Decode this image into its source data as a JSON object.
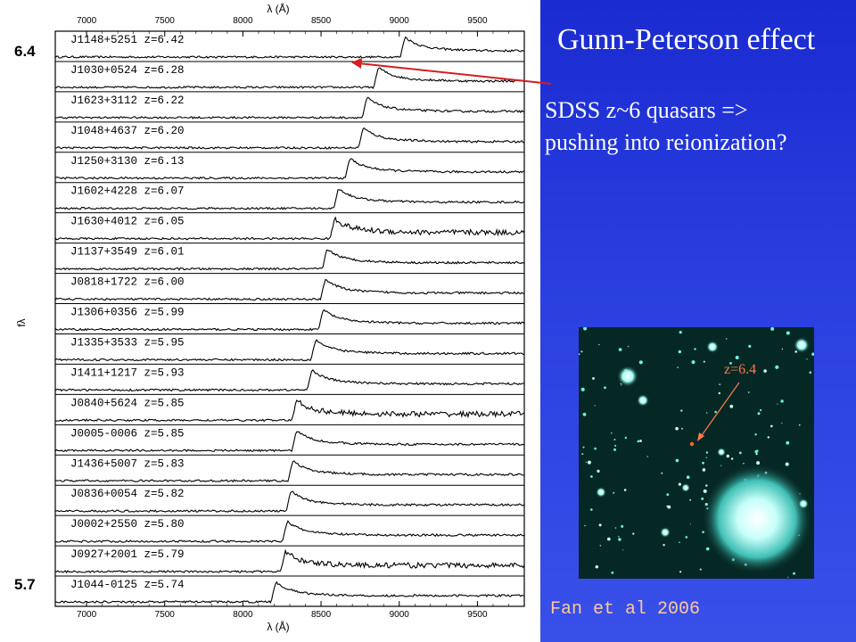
{
  "slide": {
    "title": "Gunn-Peterson effect",
    "text_line1": "SDSS z~6 quasars =>",
    "text_line2": "pushing into reionization?",
    "credit": "Fan et al 2006",
    "image_label": "z=6.4",
    "marker_top": "6.4",
    "marker_bottom": "5.7"
  },
  "colors": {
    "panel": "#2b3fe0",
    "title_text": "#ffffff",
    "credit_text": "#ffc8a0",
    "arrow": "#d02020",
    "image_label": "#ff7a4a"
  },
  "chart_data": {
    "type": "line",
    "xlabel": "λ (Å)",
    "ylabel": "fλ",
    "xlim": [
      6800,
      9800
    ],
    "xticks": [
      7000,
      7500,
      8000,
      8500,
      9000,
      9500
    ],
    "series": [
      {
        "name": "J1148+5251 z=6.42",
        "z": 6.42
      },
      {
        "name": "J1030+0524 z=6.28",
        "z": 6.28
      },
      {
        "name": "J1623+3112 z=6.22",
        "z": 6.22
      },
      {
        "name": "J1048+4637 z=6.20",
        "z": 6.2
      },
      {
        "name": "J1250+3130 z=6.13",
        "z": 6.13
      },
      {
        "name": "J1602+4228 z=6.07",
        "z": 6.07
      },
      {
        "name": "J1630+4012 z=6.05",
        "z": 6.05
      },
      {
        "name": "J1137+3549 z=6.01",
        "z": 6.01
      },
      {
        "name": "J0818+1722 z=6.00",
        "z": 6.0
      },
      {
        "name": "J1306+0356 z=5.99",
        "z": 5.99
      },
      {
        "name": "J1335+3533 z=5.95",
        "z": 5.95
      },
      {
        "name": "J1411+1217 z=5.93",
        "z": 5.93
      },
      {
        "name": "J0840+5624 z=5.85",
        "z": 5.85
      },
      {
        "name": "J0005-0006 z=5.85",
        "z": 5.85
      },
      {
        "name": "J1436+5007 z=5.83",
        "z": 5.83
      },
      {
        "name": "J0836+0054 z=5.82",
        "z": 5.82
      },
      {
        "name": "J0002+2550 z=5.80",
        "z": 5.8
      },
      {
        "name": "J0927+2001 z=5.79",
        "z": 5.79
      },
      {
        "name": "J1044-0125 z=5.74",
        "z": 5.74
      }
    ]
  }
}
